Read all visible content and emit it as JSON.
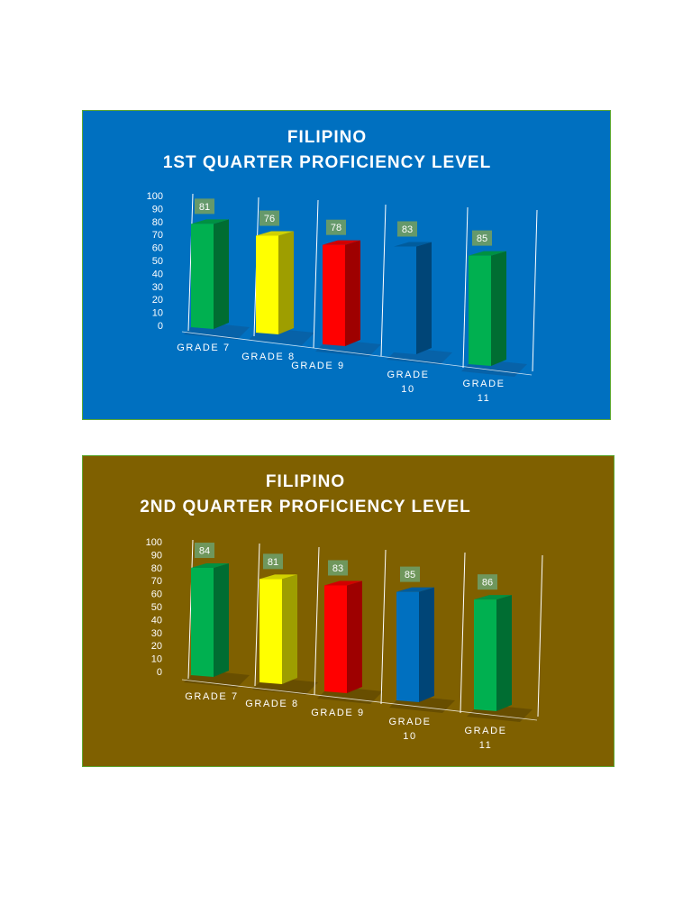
{
  "charts": [
    {
      "title_line1": "FILIPINO",
      "title_line2": "1ST QUARTER PROFICIENCY LEVEL",
      "background": "#0070C0"
    },
    {
      "title_line1": "FILIPINO",
      "title_line2": "2ND QUARTER PROFICIENCY LEVEL",
      "background": "#7F6000"
    }
  ],
  "chart_data": [
    {
      "type": "bar",
      "title": "FILIPINO 1ST QUARTER PROFICIENCY LEVEL",
      "categories": [
        [
          "GRADE 7"
        ],
        [
          "GRADE 8"
        ],
        [
          "GRADE 9"
        ],
        [
          "GRADE",
          "10"
        ],
        [
          "GRADE",
          "11"
        ]
      ],
      "values": [
        81,
        76,
        78,
        83,
        85
      ],
      "colors": [
        "#00B050",
        "#FFFF00",
        "#FF0000",
        "#0070C0",
        "#00B050"
      ],
      "ylim": [
        0,
        100
      ],
      "yticks": [
        0,
        10,
        20,
        30,
        40,
        50,
        60,
        70,
        80,
        90,
        100
      ],
      "grid": false,
      "style": "3d-column",
      "data_labels": true
    },
    {
      "type": "bar",
      "title": "FILIPINO 2ND QUARTER PROFICIENCY LEVEL",
      "categories": [
        [
          "GRADE 7"
        ],
        [
          "GRADE 8"
        ],
        [
          "GRADE 9"
        ],
        [
          "GRADE",
          "10"
        ],
        [
          "GRADE",
          "11"
        ]
      ],
      "values": [
        84,
        81,
        83,
        85,
        86
      ],
      "colors": [
        "#00B050",
        "#FFFF00",
        "#FF0000",
        "#0070C0",
        "#00B050"
      ],
      "ylim": [
        0,
        100
      ],
      "yticks": [
        0,
        10,
        20,
        30,
        40,
        50,
        60,
        70,
        80,
        90,
        100
      ],
      "grid": false,
      "style": "3d-column",
      "data_labels": true
    }
  ]
}
